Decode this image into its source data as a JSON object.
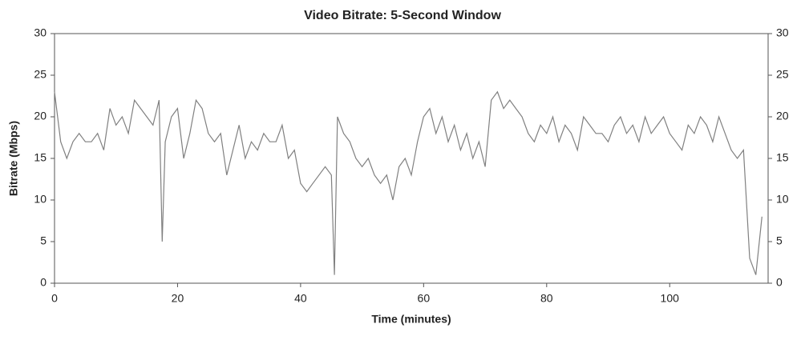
{
  "chart_data": {
    "type": "line",
    "title": "Video Bitrate: 5-Second Window",
    "x_label": "Time (minutes)",
    "y_label": "Bitrate (Mbps)",
    "x": [
      0,
      1,
      2,
      3,
      4,
      5,
      6,
      7,
      8,
      9,
      10,
      11,
      12,
      13,
      14,
      15,
      16,
      17,
      17.5,
      18,
      19,
      20,
      21,
      22,
      23,
      24,
      25,
      26,
      27,
      28,
      29,
      30,
      31,
      32,
      33,
      34,
      35,
      36,
      37,
      38,
      39,
      40,
      41,
      42,
      43,
      44,
      45,
      45.5,
      46,
      47,
      48,
      49,
      50,
      51,
      52,
      53,
      54,
      55,
      56,
      57,
      58,
      59,
      60,
      61,
      62,
      63,
      64,
      65,
      66,
      67,
      68,
      69,
      70,
      71,
      72,
      73,
      74,
      75,
      76,
      77,
      78,
      79,
      80,
      81,
      82,
      83,
      84,
      85,
      86,
      87,
      88,
      89,
      90,
      91,
      92,
      93,
      94,
      95,
      96,
      97,
      98,
      99,
      100,
      101,
      102,
      103,
      104,
      105,
      106,
      107,
      108,
      109,
      110,
      111,
      112,
      113,
      114,
      115
    ],
    "series": [
      {
        "name": "Bitrate",
        "color": "#808080",
        "values": [
          23,
          17,
          15,
          17,
          18,
          17,
          17,
          18,
          16,
          21,
          19,
          20,
          18,
          22,
          21,
          20,
          19,
          22,
          5,
          17,
          20,
          21,
          15,
          18,
          22,
          21,
          18,
          17,
          18,
          13,
          16,
          19,
          15,
          17,
          16,
          18,
          17,
          17,
          19,
          15,
          16,
          12,
          11,
          12,
          13,
          14,
          13,
          1,
          20,
          18,
          17,
          15,
          14,
          15,
          13,
          12,
          13,
          10,
          14,
          15,
          13,
          17,
          20,
          21,
          18,
          20,
          17,
          19,
          16,
          18,
          15,
          17,
          14,
          22,
          23,
          21,
          22,
          21,
          20,
          18,
          17,
          19,
          18,
          20,
          17,
          19,
          18,
          16,
          20,
          19,
          18,
          18,
          17,
          19,
          20,
          18,
          19,
          17,
          20,
          18,
          19,
          20,
          18,
          17,
          16,
          19,
          18,
          20,
          19,
          17,
          20,
          18,
          16,
          15,
          16,
          3,
          1,
          8
        ]
      }
    ],
    "xlim": [
      0,
      116
    ],
    "xticks": [
      0,
      20,
      40,
      60,
      80,
      100
    ],
    "ylim": [
      0,
      30
    ],
    "yticks": [
      0,
      5,
      10,
      15,
      20,
      25,
      30
    ],
    "y2lim": [
      0,
      30
    ],
    "y2ticks": [
      0,
      5,
      10,
      15,
      20,
      25,
      30
    ]
  }
}
